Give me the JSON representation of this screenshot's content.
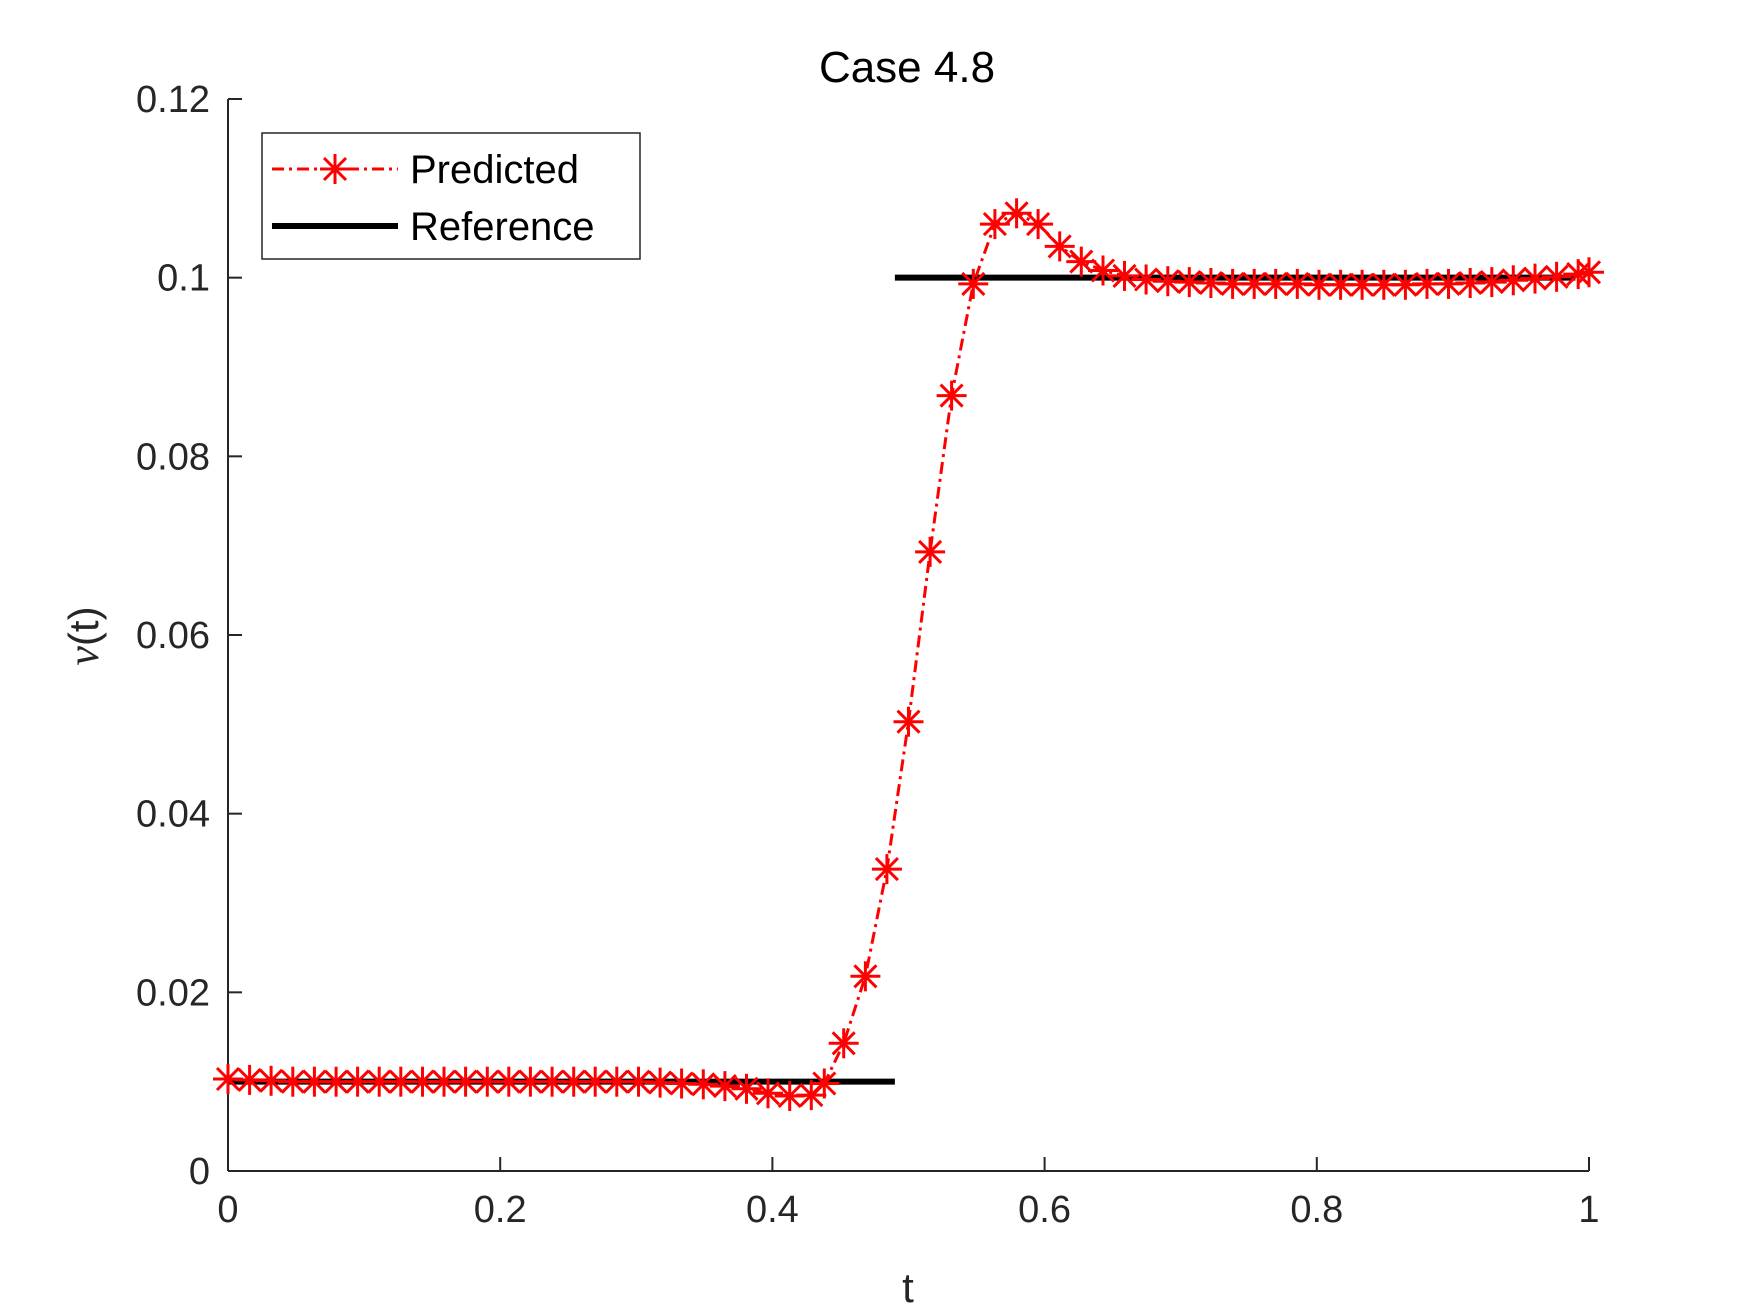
{
  "chart_data": {
    "type": "line",
    "title": "Case 4.8",
    "xlabel": "t",
    "ylabel_symbol": "ν",
    "ylabel_arg": "(t)",
    "xlim": [
      0,
      1
    ],
    "ylim": [
      0,
      0.12
    ],
    "x_ticks": [
      0,
      0.2,
      0.4,
      0.6,
      0.8,
      1
    ],
    "x_tick_labels": [
      "0",
      "0.2",
      "0.4",
      "0.6",
      "0.8",
      "1"
    ],
    "y_ticks": [
      0,
      0.02,
      0.04,
      0.06,
      0.08,
      0.1,
      0.12
    ],
    "y_tick_labels": [
      "0",
      "0.02",
      "0.04",
      "0.06",
      "0.08",
      "0.1",
      "0.12"
    ],
    "grid": false,
    "legend_position": "top-left",
    "series": [
      {
        "name": "Predicted",
        "color": "#ff0000",
        "style": "dash-dot",
        "marker": "asterisk",
        "x": [
          0,
          0.0159,
          0.0317,
          0.0476,
          0.0635,
          0.0794,
          0.0952,
          0.1111,
          0.127,
          0.1429,
          0.1587,
          0.1746,
          0.1905,
          0.2063,
          0.2222,
          0.2381,
          0.254,
          0.2698,
          0.2857,
          0.3016,
          0.3175,
          0.3333,
          0.3492,
          0.3651,
          0.381,
          0.3968,
          0.4127,
          0.4286,
          0.4381,
          0.4524,
          0.4683,
          0.4841,
          0.5,
          0.5159,
          0.5317,
          0.5476,
          0.5635,
          0.5794,
          0.5952,
          0.6111,
          0.627,
          0.6429,
          0.6587,
          0.6746,
          0.6905,
          0.7063,
          0.7222,
          0.7381,
          0.754,
          0.7698,
          0.7857,
          0.8016,
          0.8175,
          0.8333,
          0.8492,
          0.8651,
          0.881,
          0.8968,
          0.9127,
          0.9286,
          0.9444,
          0.9603,
          0.9762,
          0.9921,
          1.0
        ],
        "y": [
          0.0103,
          0.0102,
          0.0101,
          0.01,
          0.01,
          0.01,
          0.01,
          0.01,
          0.01,
          0.01,
          0.01,
          0.01,
          0.01,
          0.01,
          0.01,
          0.01,
          0.01,
          0.01,
          0.01,
          0.01,
          0.0099,
          0.0098,
          0.0097,
          0.0095,
          0.0092,
          0.0087,
          0.0084,
          0.0085,
          0.0098,
          0.0143,
          0.0218,
          0.0338,
          0.0503,
          0.0693,
          0.0868,
          0.0993,
          0.106,
          0.1072,
          0.106,
          0.1035,
          0.1018,
          0.1008,
          0.1002,
          0.0998,
          0.0996,
          0.0995,
          0.0994,
          0.0993,
          0.0993,
          0.0993,
          0.0993,
          0.0992,
          0.0992,
          0.0992,
          0.0992,
          0.0992,
          0.0993,
          0.0993,
          0.0994,
          0.0995,
          0.0997,
          0.0999,
          0.1001,
          0.1004,
          0.1006
        ]
      },
      {
        "name": "Reference",
        "color": "#000000",
        "style": "solid",
        "segments": [
          {
            "x": [
              0,
              0.49
            ],
            "y": [
              0.01,
              0.01
            ]
          },
          {
            "x": [
              0.49,
              0.99
            ],
            "y": [
              0.1,
              0.1
            ]
          }
        ]
      }
    ]
  }
}
